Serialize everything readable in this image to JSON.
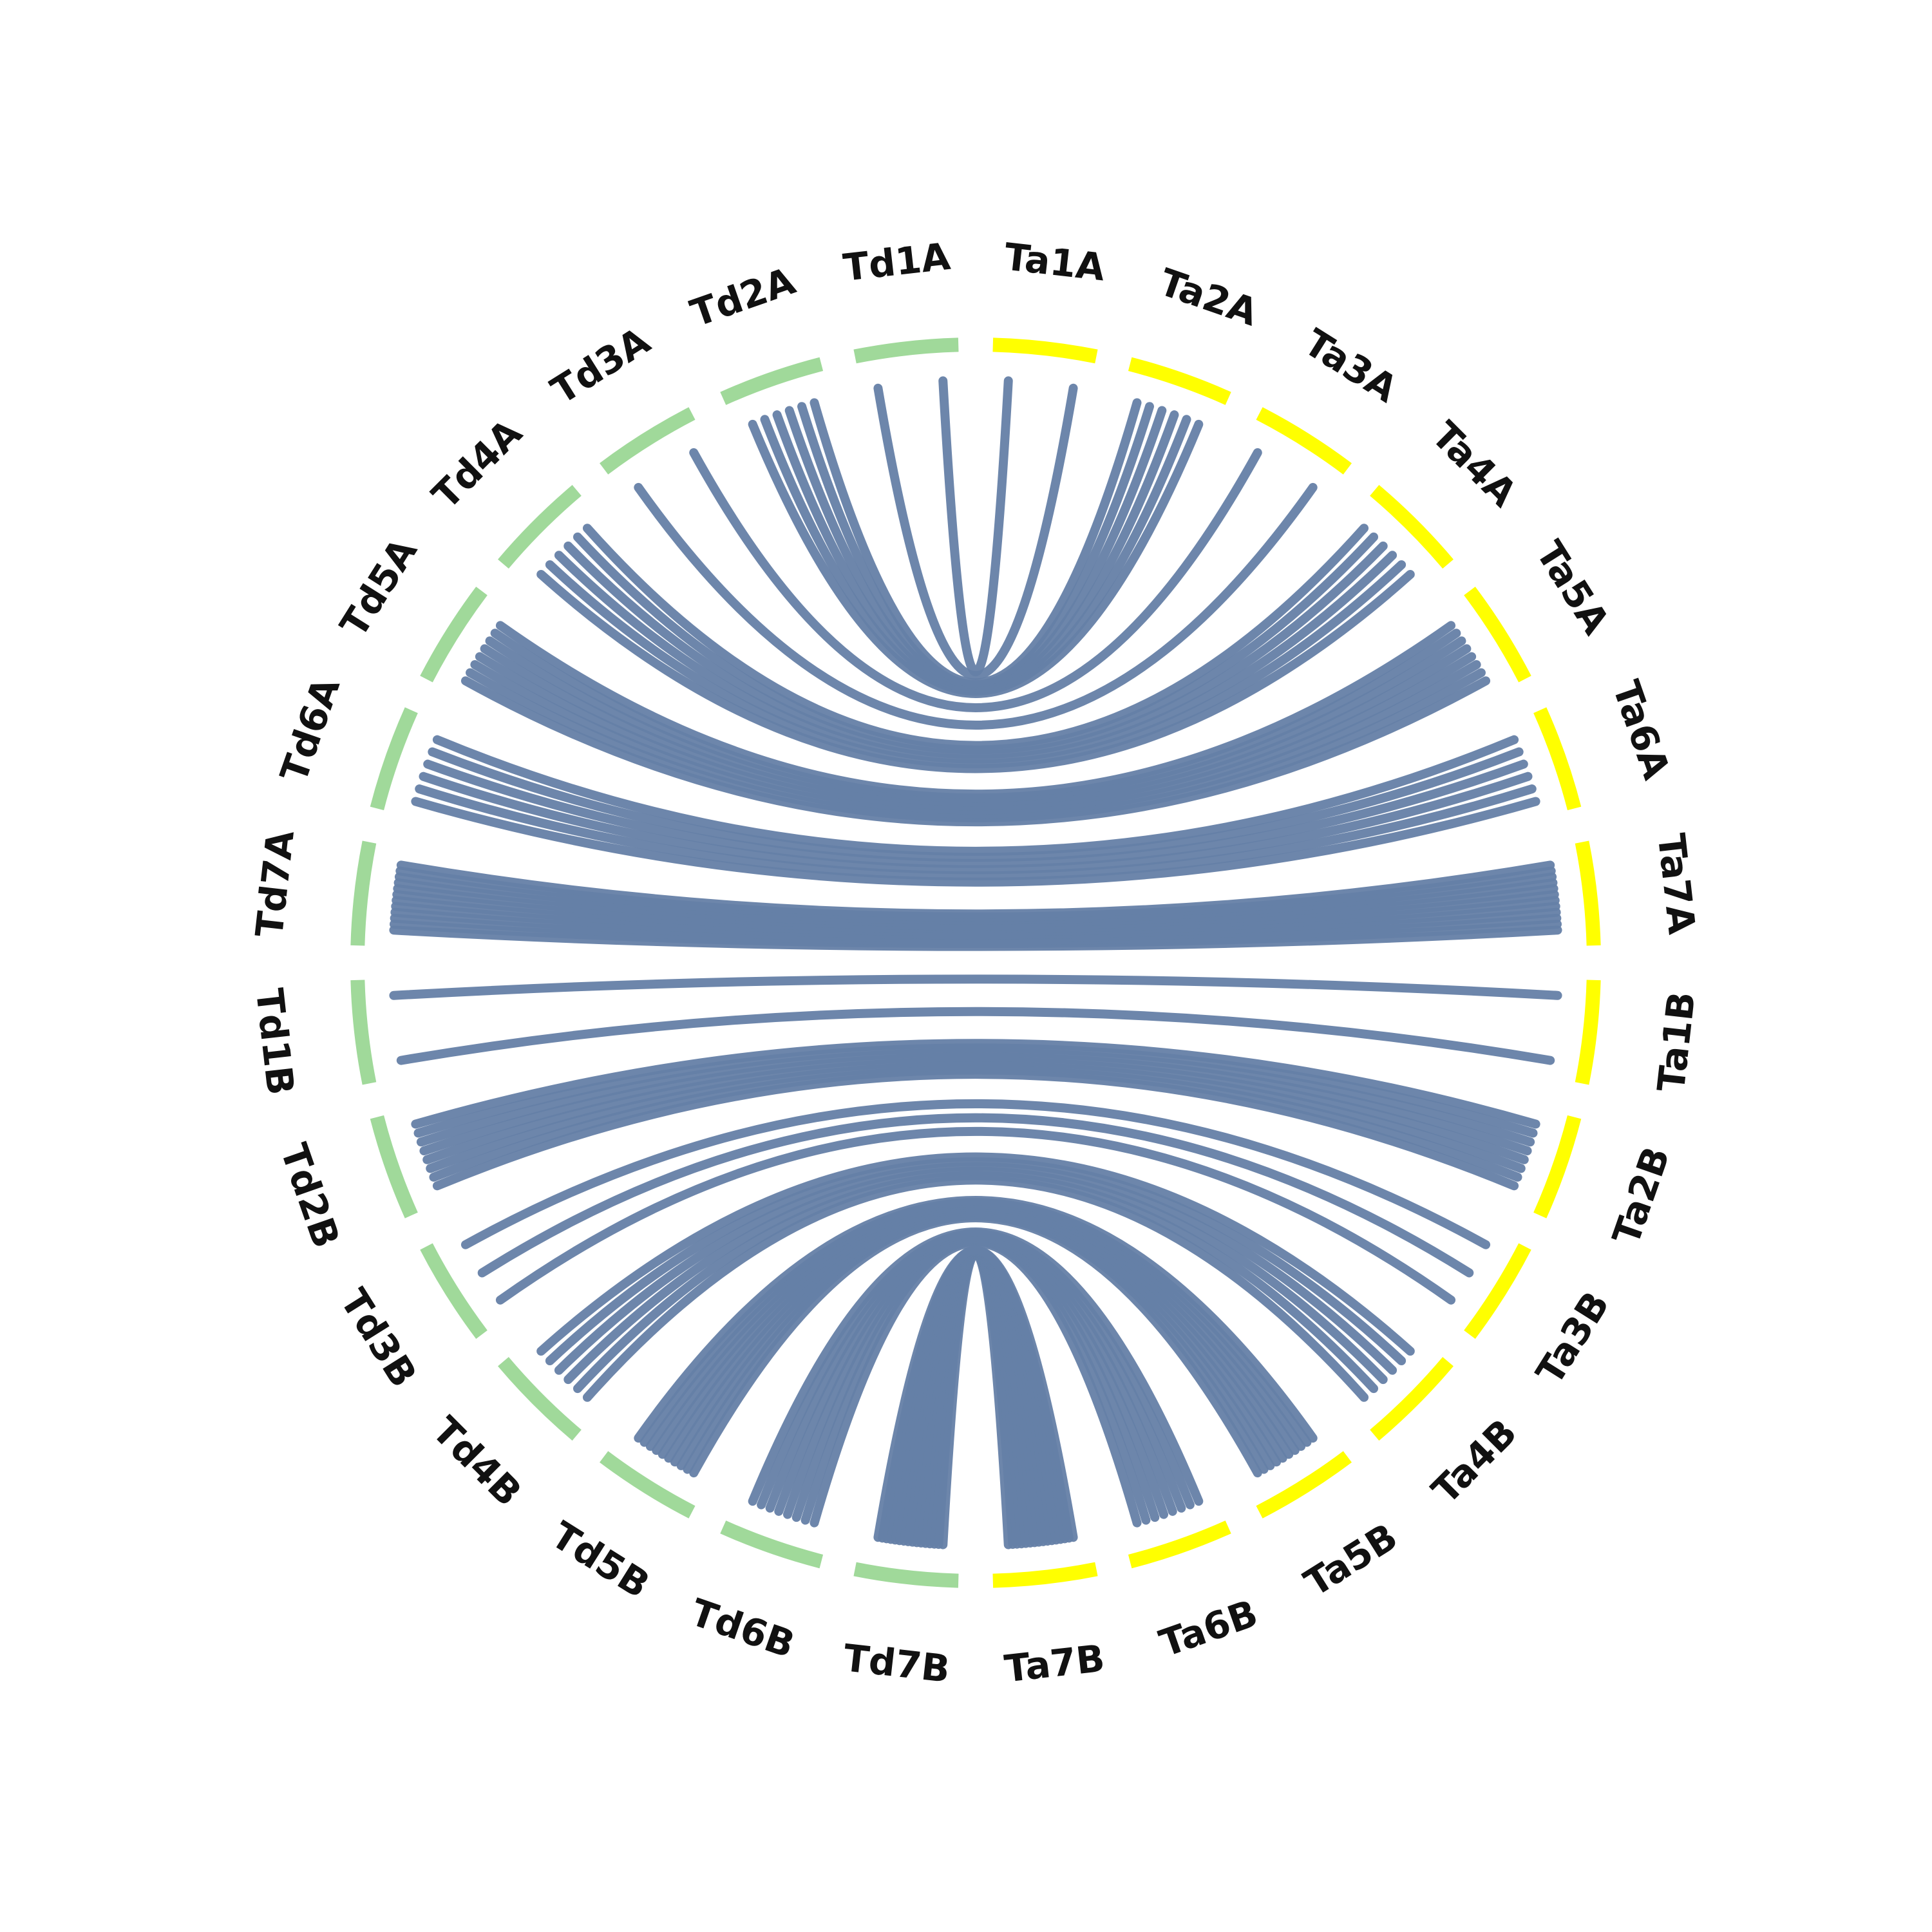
{
  "colors": {
    "td_group": "#a0d99a",
    "ta_group": "#ffff00",
    "link": "#6580a6"
  },
  "chromosomes": [
    {
      "id": "Ta1A",
      "label": "Ta1A",
      "group": "Ta"
    },
    {
      "id": "Ta2A",
      "label": "Ta2A",
      "group": "Ta"
    },
    {
      "id": "Ta3A",
      "label": "Ta3A",
      "group": "Ta"
    },
    {
      "id": "Ta4A",
      "label": "Ta4A",
      "group": "Ta"
    },
    {
      "id": "Ta5A",
      "label": "Ta5A",
      "group": "Ta"
    },
    {
      "id": "Ta6A",
      "label": "Ta6A",
      "group": "Ta"
    },
    {
      "id": "Ta7A",
      "label": "Ta7A",
      "group": "Ta"
    },
    {
      "id": "Ta1B",
      "label": "Ta1B",
      "group": "Ta"
    },
    {
      "id": "Ta2B",
      "label": "Ta2B",
      "group": "Ta"
    },
    {
      "id": "Ta3B",
      "label": "Ta3B",
      "group": "Ta"
    },
    {
      "id": "Ta4B",
      "label": "Ta4B",
      "group": "Ta"
    },
    {
      "id": "Ta5B",
      "label": "Ta5B",
      "group": "Ta"
    },
    {
      "id": "Ta6B",
      "label": "Ta6B",
      "group": "Ta"
    },
    {
      "id": "Ta7B",
      "label": "Ta7B",
      "group": "Ta"
    },
    {
      "id": "Td7B",
      "label": "Td7B",
      "group": "Td"
    },
    {
      "id": "Td6B",
      "label": "Td6B",
      "group": "Td"
    },
    {
      "id": "Td5B",
      "label": "Td5B",
      "group": "Td"
    },
    {
      "id": "Td4B",
      "label": "Td4B",
      "group": "Td"
    },
    {
      "id": "Td3B",
      "label": "Td3B",
      "group": "Td"
    },
    {
      "id": "Td2B",
      "label": "Td2B",
      "group": "Td"
    },
    {
      "id": "Td1B",
      "label": "Td1B",
      "group": "Td"
    },
    {
      "id": "Td7A",
      "label": "Td7A",
      "group": "Td"
    },
    {
      "id": "Td6A",
      "label": "Td6A",
      "group": "Td"
    },
    {
      "id": "Td5A",
      "label": "Td5A",
      "group": "Td"
    },
    {
      "id": "Td4A",
      "label": "Td4A",
      "group": "Td"
    },
    {
      "id": "Td3A",
      "label": "Td3A",
      "group": "Td"
    },
    {
      "id": "Td2A",
      "label": "Td2A",
      "group": "Td"
    },
    {
      "id": "Td1A",
      "label": "Td1A",
      "group": "Td"
    }
  ],
  "links": [
    {
      "from": "Td1A",
      "to": "Ta1A",
      "count": 2
    },
    {
      "from": "Td2A",
      "to": "Ta2A",
      "count": 6
    },
    {
      "from": "Td3A",
      "to": "Ta3A",
      "count": 2
    },
    {
      "from": "Td4A",
      "to": "Ta4A",
      "count": 6
    },
    {
      "from": "Td5A",
      "to": "Ta5A",
      "count": 8
    },
    {
      "from": "Td6A",
      "to": "Ta6A",
      "count": 6
    },
    {
      "from": "Td7A",
      "to": "Ta7A",
      "count": 12
    },
    {
      "from": "Td1B",
      "to": "Ta1B",
      "count": 2
    },
    {
      "from": "Td2B",
      "to": "Ta2B",
      "count": 8
    },
    {
      "from": "Td3B",
      "to": "Ta3B",
      "count": 3
    },
    {
      "from": "Td4B",
      "to": "Ta4B",
      "count": 6
    },
    {
      "from": "Td5B",
      "to": "Ta5B",
      "count": 10
    },
    {
      "from": "Td6B",
      "to": "Ta6B",
      "count": 8
    },
    {
      "from": "Td7B",
      "to": "Ta7B",
      "count": 16
    }
  ]
}
